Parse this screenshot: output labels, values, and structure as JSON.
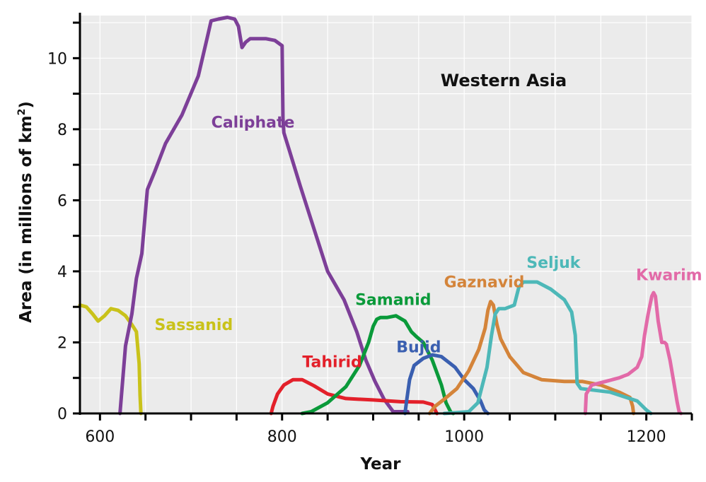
{
  "chart_data": {
    "type": "line",
    "title": "Western Asia",
    "xlabel": "Year",
    "ylabel": "Area (in millions of km",
    "ylabel_sup": "2",
    "ylabel_end": ")",
    "xlim": [
      578,
      1250
    ],
    "ylim": [
      0,
      11.2
    ],
    "x_ticks": [
      600,
      800,
      1000,
      1200
    ],
    "y_ticks": [
      0,
      2,
      4,
      6,
      8,
      10
    ],
    "x_minor_step": 50,
    "y_minor_step": 1,
    "grid": true,
    "series": [
      {
        "name": "Sassanid",
        "color": "#c9c21a",
        "x": [
          578,
          585,
          592,
          598,
          605,
          612,
          620,
          628,
          635,
          640,
          643,
          644,
          645
        ],
        "y": [
          3.05,
          3.0,
          2.8,
          2.6,
          2.75,
          2.95,
          2.9,
          2.75,
          2.5,
          2.3,
          1.4,
          0.5,
          0
        ]
      },
      {
        "name": "Caliphate",
        "color": "#7d3f98",
        "x": [
          622,
          628,
          635,
          640,
          646,
          652,
          660,
          672,
          690,
          708,
          718,
          722,
          730,
          740,
          748,
          752,
          756,
          760,
          765,
          772,
          782,
          792,
          800,
          801,
          802,
          808,
          820,
          835,
          850,
          868,
          882,
          892,
          902,
          912,
          922,
          938
        ],
        "y": [
          0,
          1.9,
          2.8,
          3.8,
          4.5,
          6.3,
          6.8,
          7.6,
          8.4,
          9.5,
          10.6,
          11.05,
          11.1,
          11.15,
          11.1,
          10.9,
          10.3,
          10.45,
          10.55,
          10.55,
          10.55,
          10.5,
          10.35,
          8.3,
          7.9,
          7.4,
          6.4,
          5.2,
          4.0,
          3.2,
          2.3,
          1.5,
          0.9,
          0.4,
          0.05,
          0.05
        ]
      },
      {
        "name": "Tahirid",
        "color": "#e3202a",
        "x": [
          788,
          790,
          795,
          802,
          812,
          822,
          835,
          850,
          870,
          900,
          930,
          955,
          965,
          970
        ],
        "y": [
          0,
          0.2,
          0.55,
          0.8,
          0.95,
          0.95,
          0.78,
          0.55,
          0.42,
          0.38,
          0.33,
          0.32,
          0.25,
          0
        ]
      },
      {
        "name": "Samanid",
        "color": "#0a9a3a",
        "x": [
          822,
          832,
          850,
          870,
          885,
          895,
          900,
          904,
          908,
          915,
          925,
          935,
          942,
          948,
          955,
          965,
          975,
          980,
          985,
          986,
          988
        ],
        "y": [
          0,
          0.05,
          0.3,
          0.75,
          1.35,
          2.0,
          2.45,
          2.65,
          2.7,
          2.7,
          2.75,
          2.6,
          2.3,
          2.15,
          2.0,
          1.5,
          0.8,
          0.3,
          0.05,
          0.02,
          0
        ]
      },
      {
        "name": "Bujid",
        "color": "#3a5fb0",
        "x": [
          935,
          937,
          940,
          945,
          955,
          965,
          975,
          990,
          1000,
          1010,
          1018,
          1022,
          1025,
          1026
        ],
        "y": [
          0,
          0.4,
          0.95,
          1.35,
          1.55,
          1.65,
          1.6,
          1.3,
          0.95,
          0.7,
          0.35,
          0.1,
          0.02,
          0
        ]
      },
      {
        "name": "Gaznavid",
        "color": "#d4843a",
        "x": [
          962,
          968,
          978,
          992,
          1005,
          1016,
          1023,
          1026,
          1029,
          1032,
          1036,
          1040,
          1050,
          1065,
          1085,
          1110,
          1130,
          1150,
          1170,
          1182,
          1185,
          1186
        ],
        "y": [
          0,
          0.2,
          0.4,
          0.7,
          1.2,
          1.8,
          2.4,
          2.9,
          3.15,
          3.05,
          2.5,
          2.1,
          1.6,
          1.15,
          0.95,
          0.9,
          0.9,
          0.8,
          0.6,
          0.45,
          0.2,
          0
        ]
      },
      {
        "name": "Seljuk",
        "color": "#4db8b8",
        "x": [
          978,
          990,
          1005,
          1015,
          1025,
          1030,
          1034,
          1038,
          1045,
          1055,
          1060,
          1065,
          1080,
          1095,
          1110,
          1118,
          1122,
          1124,
          1128,
          1160,
          1190,
          1200,
          1205
        ],
        "y": [
          0,
          0.02,
          0.05,
          0.3,
          1.3,
          2.2,
          2.8,
          2.95,
          2.95,
          3.05,
          3.55,
          3.7,
          3.7,
          3.5,
          3.2,
          2.85,
          2.2,
          0.85,
          0.7,
          0.6,
          0.35,
          0.1,
          0
        ]
      },
      {
        "name": "Kwarim",
        "color": "#e26aa8",
        "x": [
          1133,
          1134,
          1140,
          1155,
          1170,
          1180,
          1190,
          1195,
          1198,
          1202,
          1206,
          1208,
          1210,
          1213,
          1217,
          1220,
          1222,
          1226,
          1230,
          1234,
          1236,
          1238
        ],
        "y": [
          0,
          0.55,
          0.8,
          0.9,
          1.0,
          1.1,
          1.3,
          1.6,
          2.2,
          2.8,
          3.3,
          3.4,
          3.3,
          2.6,
          2.0,
          2.0,
          1.95,
          1.5,
          0.9,
          0.3,
          0.05,
          0
        ]
      }
    ],
    "labels": [
      {
        "name": "Caliphate",
        "text": "Caliphate",
        "x": 768,
        "y": 8.05
      },
      {
        "name": "Sassanid",
        "text": "Sassanid",
        "x": 703,
        "y": 2.35
      },
      {
        "name": "Tahirid",
        "text": "Tahirid",
        "x": 855,
        "y": 1.3
      },
      {
        "name": "Samanid",
        "text": "Samanid",
        "x": 922,
        "y": 3.05
      },
      {
        "name": "Bujid",
        "text": "Bujid",
        "x": 950,
        "y": 1.72
      },
      {
        "name": "Gaznavid",
        "text": "Gaznavid",
        "x": 1022,
        "y": 3.55
      },
      {
        "name": "Seljuk",
        "text": "Seljuk",
        "x": 1098,
        "y": 4.1
      },
      {
        "name": "Kwarim",
        "text": "Kwarim",
        "x": 1225,
        "y": 3.75
      }
    ]
  }
}
